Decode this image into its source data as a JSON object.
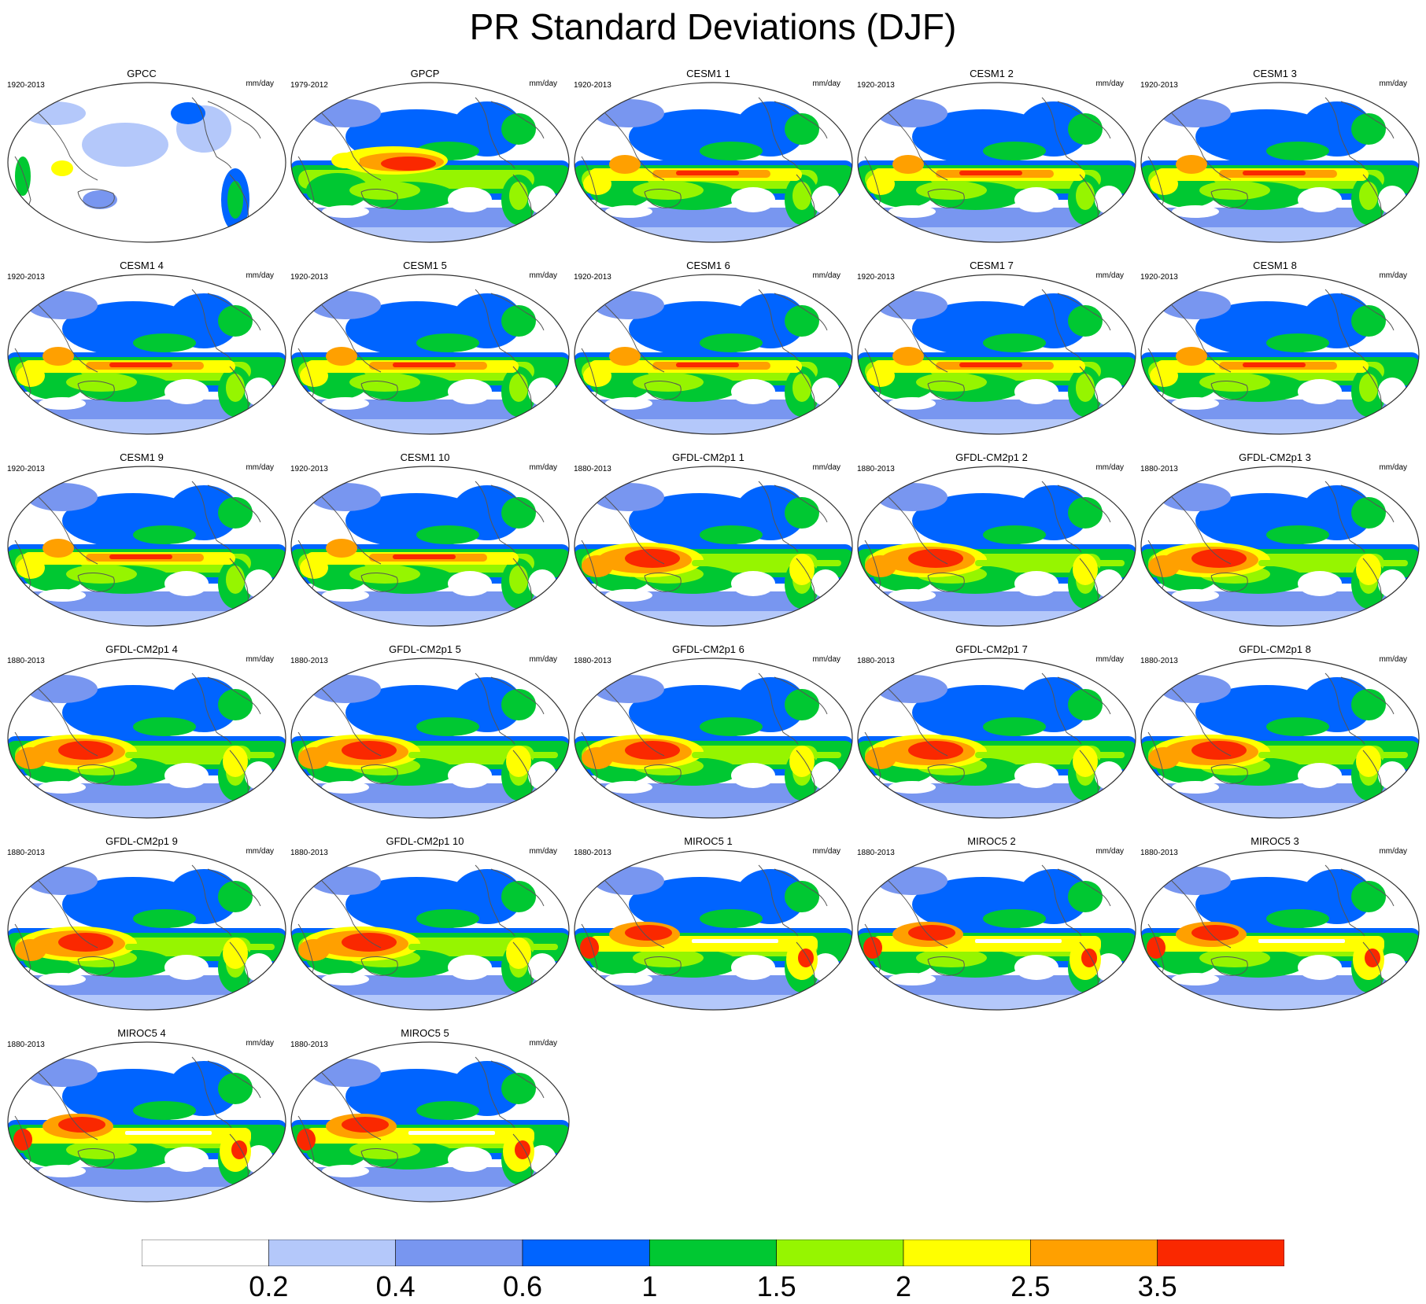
{
  "title": "PR Standard Deviations (DJF)",
  "units": "mm/day",
  "panels": [
    {
      "name": "GPCC",
      "period": "1920-2013",
      "style": "obs-land"
    },
    {
      "name": "GPCP",
      "period": "1979-2012",
      "style": "obs"
    },
    {
      "name": "CESM1 1",
      "period": "1920-2013",
      "style": "cesm"
    },
    {
      "name": "CESM1 2",
      "period": "1920-2013",
      "style": "cesm"
    },
    {
      "name": "CESM1 3",
      "period": "1920-2013",
      "style": "cesm"
    },
    {
      "name": "CESM1 4",
      "period": "1920-2013",
      "style": "cesm"
    },
    {
      "name": "CESM1 5",
      "period": "1920-2013",
      "style": "cesm"
    },
    {
      "name": "CESM1 6",
      "period": "1920-2013",
      "style": "cesm"
    },
    {
      "name": "CESM1 7",
      "period": "1920-2013",
      "style": "cesm"
    },
    {
      "name": "CESM1 8",
      "period": "1920-2013",
      "style": "cesm"
    },
    {
      "name": "CESM1 9",
      "period": "1920-2013",
      "style": "cesm"
    },
    {
      "name": "CESM1 10",
      "period": "1920-2013",
      "style": "cesm"
    },
    {
      "name": "GFDL-CM2p1 1",
      "period": "1880-2013",
      "style": "gfdl"
    },
    {
      "name": "GFDL-CM2p1 2",
      "period": "1880-2013",
      "style": "gfdl"
    },
    {
      "name": "GFDL-CM2p1 3",
      "period": "1880-2013",
      "style": "gfdl"
    },
    {
      "name": "GFDL-CM2p1 4",
      "period": "1880-2013",
      "style": "gfdl"
    },
    {
      "name": "GFDL-CM2p1 5",
      "period": "1880-2013",
      "style": "gfdl"
    },
    {
      "name": "GFDL-CM2p1 6",
      "period": "1880-2013",
      "style": "gfdl"
    },
    {
      "name": "GFDL-CM2p1 7",
      "period": "1880-2013",
      "style": "gfdl"
    },
    {
      "name": "GFDL-CM2p1 8",
      "period": "1880-2013",
      "style": "gfdl"
    },
    {
      "name": "GFDL-CM2p1 9",
      "period": "1880-2013",
      "style": "gfdl"
    },
    {
      "name": "GFDL-CM2p1 10",
      "period": "1880-2013",
      "style": "gfdl"
    },
    {
      "name": "MIROC5 1",
      "period": "1880-2013",
      "style": "miroc"
    },
    {
      "name": "MIROC5 2",
      "period": "1880-2013",
      "style": "miroc"
    },
    {
      "name": "MIROC5 3",
      "period": "1880-2013",
      "style": "miroc"
    },
    {
      "name": "MIROC5 4",
      "period": "1880-2013",
      "style": "miroc"
    },
    {
      "name": "MIROC5 5",
      "period": "1880-2013",
      "style": "miroc"
    }
  ],
  "colorbar": {
    "colors": [
      "#ffffff",
      "#b4c8fa",
      "#7896f0",
      "#0064ff",
      "#00c832",
      "#96f500",
      "#ffff00",
      "#ffa000",
      "#fa2800"
    ],
    "labels": [
      "0.2",
      "0.4",
      "0.6",
      "1",
      "1.5",
      "2",
      "2.5",
      "3.5"
    ]
  },
  "colors": {
    "outline": "#333333",
    "coast": "#555555"
  }
}
